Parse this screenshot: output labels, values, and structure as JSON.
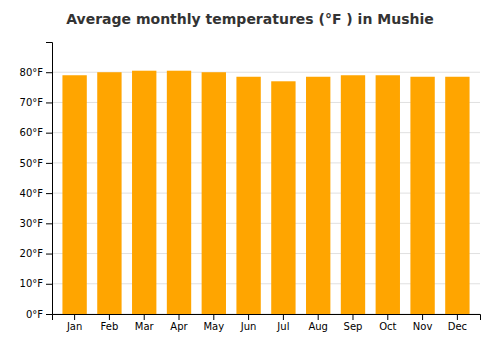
{
  "chart_data": {
    "type": "bar",
    "title": "Average monthly temperatures (°F ) in Mushie",
    "categories": [
      "Jan",
      "Feb",
      "Mar",
      "Apr",
      "May",
      "Jun",
      "Jul",
      "Aug",
      "Sep",
      "Oct",
      "Nov",
      "Dec"
    ],
    "values": [
      79,
      80,
      80.5,
      80.5,
      80,
      78.5,
      77,
      78.5,
      79,
      79,
      78.5,
      78.5
    ],
    "color": "#FFA500",
    "ylim": [
      0,
      90
    ],
    "yticks": [
      {
        "value": 0,
        "label": "0°F"
      },
      {
        "value": 10,
        "label": "10°F"
      },
      {
        "value": 20,
        "label": "20°F"
      },
      {
        "value": 30,
        "label": "30°F"
      },
      {
        "value": 40,
        "label": "40°F"
      },
      {
        "value": 50,
        "label": "50°F"
      },
      {
        "value": 60,
        "label": "60°F"
      },
      {
        "value": 70,
        "label": "70°F"
      },
      {
        "value": 80,
        "label": "80°F"
      }
    ],
    "grid": true
  }
}
